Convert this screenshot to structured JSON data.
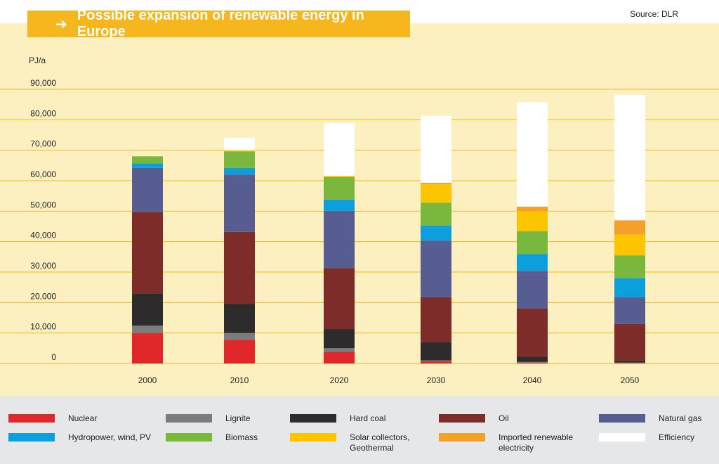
{
  "header": {
    "title": "Possible expansion of renewable energy in Europe",
    "arrow": "➔",
    "source": "Source: DLR"
  },
  "chart_data": {
    "type": "bar",
    "stacked": true,
    "ylabel": "PJ/a",
    "ylim": [
      0,
      90000
    ],
    "yticks": [
      "0",
      "10,000",
      "20,000",
      "30,000",
      "40,000",
      "50,000",
      "60,000",
      "70,000",
      "80,000",
      "90,000"
    ],
    "grid": true,
    "legend_position": "bottom",
    "categories": [
      "2000",
      "2010",
      "2020",
      "2030",
      "2040",
      "2050"
    ],
    "series": [
      {
        "name": "Nuclear",
        "color": "#e0272a",
        "values": [
          10000,
          7800,
          3800,
          700,
          300,
          200
        ]
      },
      {
        "name": "Lignite",
        "color": "#7b7c7e",
        "values": [
          2400,
          2200,
          1200,
          300,
          200,
          100
        ]
      },
      {
        "name": "Hard coal",
        "color": "#2d2b2c",
        "values": [
          10600,
          9500,
          6300,
          6000,
          1700,
          700
        ]
      },
      {
        "name": "Oil",
        "color": "#7d2c2a",
        "values": [
          26700,
          23700,
          20000,
          14700,
          15800,
          12000
        ]
      },
      {
        "name": "Natural gas",
        "color": "#575d91",
        "values": [
          14500,
          18800,
          18800,
          18600,
          12400,
          8700
        ]
      },
      {
        "name": "Hydropower, wind, PV",
        "color": "#0c9fdc",
        "values": [
          1500,
          2200,
          3700,
          5000,
          5500,
          6300
        ]
      },
      {
        "name": "Biomass",
        "color": "#79b83d",
        "values": [
          2300,
          5400,
          7400,
          7500,
          7500,
          7500
        ]
      },
      {
        "name": "Solar collectors, Geothermal",
        "color": "#fdc500",
        "values": [
          0,
          400,
          400,
          6000,
          6600,
          6800
        ]
      },
      {
        "name": "Imported renewable electricity",
        "color": "#f4a129",
        "values": [
          0,
          0,
          0,
          500,
          1500,
          4700
        ]
      },
      {
        "name": "Efficiency",
        "color": "#ffffff",
        "values": [
          0,
          4100,
          17400,
          22000,
          34300,
          41100
        ]
      }
    ]
  },
  "legend": {
    "items": [
      {
        "label": "Nuclear",
        "color": "#e0272a"
      },
      {
        "label": "Lignite",
        "color": "#7b7c7e"
      },
      {
        "label": "Hard coal",
        "color": "#2d2b2c"
      },
      {
        "label": "Oil",
        "color": "#7d2c2a"
      },
      {
        "label": "Natural gas",
        "color": "#575d91"
      },
      {
        "label": "Hydropower, wind, PV",
        "color": "#0c9fdc"
      },
      {
        "label": "Biomass",
        "color": "#79b83d"
      },
      {
        "label": "Solar collectors, Geothermal",
        "color": "#fdc500"
      },
      {
        "label": "Imported renewable electricity",
        "color": "#f4a129"
      },
      {
        "label": "Efficiency",
        "color": "#ffffff"
      }
    ]
  }
}
